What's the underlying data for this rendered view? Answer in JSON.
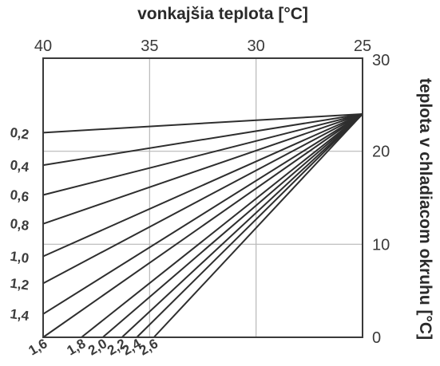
{
  "chart_data": {
    "type": "line",
    "title": "vonkajšia teplota [°C]",
    "xlabel": "vonkajšia teplota [°C]",
    "ylabel": "teplota v chladiacom okruhu [°C]",
    "xlim": [
      40,
      25
    ],
    "ylim": [
      0,
      30
    ],
    "x_ticks": [
      "40",
      "35",
      "30",
      "25"
    ],
    "y_ticks": [
      "0",
      "10",
      "20",
      "30"
    ],
    "grid": true,
    "end_point": {
      "x": 25,
      "y": 24
    },
    "series": [
      {
        "name": "0,2",
        "points": [
          [
            40,
            22
          ],
          [
            25,
            24
          ]
        ]
      },
      {
        "name": "0,4",
        "points": [
          [
            40,
            18.5
          ],
          [
            25,
            24
          ]
        ]
      },
      {
        "name": "0,6",
        "points": [
          [
            40,
            15.3
          ],
          [
            25,
            24
          ]
        ]
      },
      {
        "name": "0,8",
        "points": [
          [
            40,
            12.2
          ],
          [
            25,
            24
          ]
        ]
      },
      {
        "name": "1,0",
        "points": [
          [
            40,
            8.7
          ],
          [
            25,
            24
          ]
        ]
      },
      {
        "name": "1,2",
        "points": [
          [
            40,
            5.8
          ],
          [
            25,
            24
          ]
        ]
      },
      {
        "name": "1,4",
        "points": [
          [
            40,
            2.5
          ],
          [
            25,
            24
          ]
        ]
      },
      {
        "name": "1,6",
        "points": [
          [
            40,
            0
          ],
          [
            25,
            24
          ]
        ]
      },
      {
        "name": "1,8",
        "points": [
          [
            38.2,
            0
          ],
          [
            25,
            24
          ]
        ]
      },
      {
        "name": "2,0",
        "points": [
          [
            37.2,
            0
          ],
          [
            25,
            24
          ]
        ]
      },
      {
        "name": "2,2",
        "points": [
          [
            36.3,
            0
          ],
          [
            25,
            24
          ]
        ]
      },
      {
        "name": "2,4",
        "points": [
          [
            35.6,
            0
          ],
          [
            25,
            24
          ]
        ]
      },
      {
        "name": "2,6",
        "points": [
          [
            34.8,
            0
          ],
          [
            25,
            24
          ]
        ]
      }
    ]
  }
}
